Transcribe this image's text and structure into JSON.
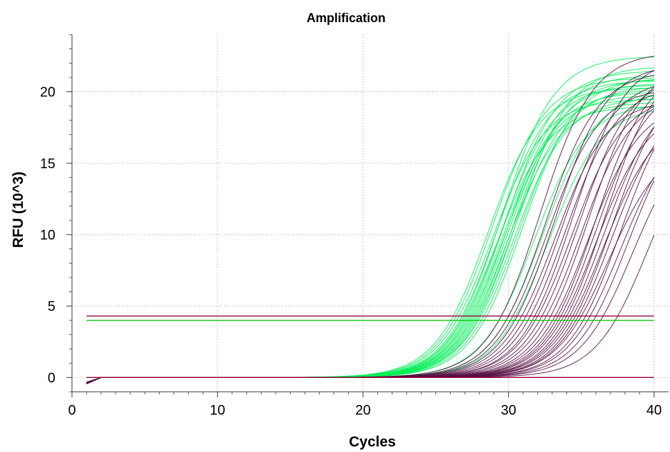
{
  "chart_data": {
    "type": "line",
    "title": "Amplification",
    "xlabel": "Cycles",
    "ylabel": "RFU (10^3)",
    "xlim": [
      0,
      41
    ],
    "ylim": [
      -1,
      24
    ],
    "x_ticks": [
      0,
      10,
      20,
      30,
      40
    ],
    "y_ticks": [
      0,
      5,
      10,
      15,
      20
    ],
    "grid": true,
    "x_range_cycles": [
      1,
      40
    ],
    "threshold_lines": [
      {
        "color": "#990033",
        "value": 4.3
      },
      {
        "color": "#00cc00",
        "value": 4.0
      }
    ],
    "baseline_line": {
      "color": "#990033",
      "value": 0
    },
    "series_groups": [
      {
        "color": "#00ee55",
        "curves": [
          {
            "ct": 26.2,
            "plateau": 20.3
          },
          {
            "ct": 26.4,
            "plateau": 21.0
          },
          {
            "ct": 26.6,
            "plateau": 19.5
          },
          {
            "ct": 26.8,
            "plateau": 20.8
          },
          {
            "ct": 26.9,
            "plateau": 22.5
          },
          {
            "ct": 27.0,
            "plateau": 19.0
          },
          {
            "ct": 27.1,
            "plateau": 20.5
          },
          {
            "ct": 27.2,
            "plateau": 21.5
          },
          {
            "ct": 27.3,
            "plateau": 20.0
          },
          {
            "ct": 27.4,
            "plateau": 19.8
          },
          {
            "ct": 27.5,
            "plateau": 21.2
          },
          {
            "ct": 27.6,
            "plateau": 20.6
          },
          {
            "ct": 27.7,
            "plateau": 19.3
          },
          {
            "ct": 27.8,
            "plateau": 20.9
          },
          {
            "ct": 27.9,
            "plateau": 20.2
          },
          {
            "ct": 28.0,
            "plateau": 21.8
          },
          {
            "ct": 28.1,
            "plateau": 19.6
          },
          {
            "ct": 28.3,
            "plateau": 20.4
          },
          {
            "ct": 28.5,
            "plateau": 21.0
          },
          {
            "ct": 29.5,
            "plateau": 19.2
          },
          {
            "ct": 30.0,
            "plateau": 20.0
          },
          {
            "ct": 30.5,
            "plateau": 19.0
          }
        ]
      },
      {
        "color": "#551144",
        "curves": [
          {
            "ct": 29.5,
            "plateau": 22.8
          },
          {
            "ct": 30.0,
            "plateau": 21.5
          },
          {
            "ct": 30.3,
            "plateau": 20.3
          },
          {
            "ct": 30.6,
            "plateau": 22.0
          },
          {
            "ct": 30.9,
            "plateau": 19.5
          },
          {
            "ct": 31.2,
            "plateau": 21.0
          },
          {
            "ct": 31.5,
            "plateau": 20.5
          },
          {
            "ct": 31.8,
            "plateau": 22.5
          },
          {
            "ct": 32.0,
            "plateau": 19.8
          },
          {
            "ct": 32.3,
            "plateau": 21.3
          },
          {
            "ct": 32.6,
            "plateau": 20.0
          },
          {
            "ct": 32.9,
            "plateau": 22.0
          },
          {
            "ct": 33.2,
            "plateau": 19.3
          },
          {
            "ct": 33.4,
            "plateau": 21.8
          },
          {
            "ct": 33.6,
            "plateau": 20.8
          },
          {
            "ct": 33.8,
            "plateau": 19.0
          },
          {
            "ct": 34.0,
            "plateau": 22.3
          },
          {
            "ct": 34.2,
            "plateau": 20.2
          },
          {
            "ct": 34.4,
            "plateau": 18.5
          },
          {
            "ct": 34.6,
            "plateau": 21.0
          },
          {
            "ct": 34.8,
            "plateau": 19.5
          },
          {
            "ct": 35.0,
            "plateau": 16.5
          },
          {
            "ct": 35.3,
            "plateau": 20.5
          },
          {
            "ct": 35.6,
            "plateau": 18.0
          },
          {
            "ct": 36.0,
            "plateau": 19.0
          },
          {
            "ct": 36.5,
            "plateau": 17.5
          },
          {
            "ct": 37.5,
            "plateau": 18.0
          }
        ]
      }
    ]
  }
}
